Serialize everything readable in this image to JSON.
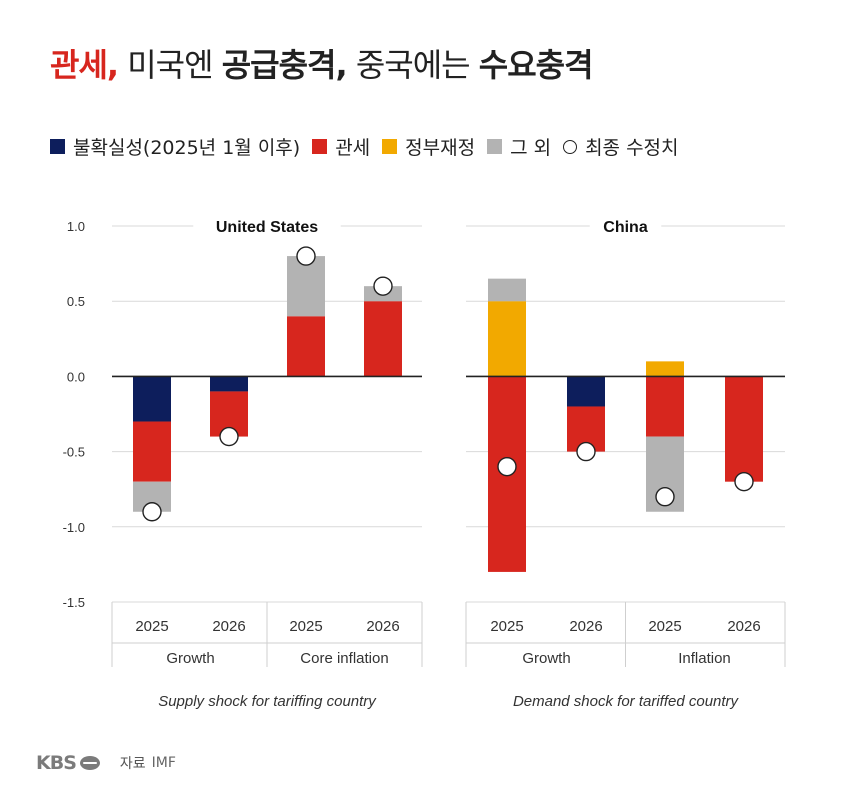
{
  "headline": {
    "part1": "관세,",
    "part2": " 미국엔 ",
    "part3": "공급충격,",
    "part4": " 중국에는 ",
    "part5": "수요충격"
  },
  "legend": [
    {
      "label": "불확실성(2025년 1월 이후)",
      "color": "#0d1e5c",
      "shape": "square"
    },
    {
      "label": "관세",
      "color": "#d7261e",
      "shape": "square"
    },
    {
      "label": "정부재정",
      "color": "#f2a900",
      "shape": "square"
    },
    {
      "label": "그 외",
      "color": "#b3b3b3",
      "shape": "square"
    },
    {
      "label": "최종 수정치",
      "color": "#ffffff",
      "shape": "circle"
    }
  ],
  "footer": {
    "brand": "KBS",
    "source_label": "자료",
    "source": "IMF"
  },
  "chart_data": [
    {
      "type": "bar",
      "stacked": true,
      "title": "United States",
      "subtitle": "Supply shock for tariffing country",
      "ylim": [
        -1.5,
        1.0
      ],
      "yticks": [
        "1.0",
        "0.5",
        "0.0",
        "-0.5",
        "-1.0",
        "-1.5"
      ],
      "categories": [
        "2025",
        "2026",
        "2025",
        "2026"
      ],
      "groups": [
        {
          "label": "Growth",
          "span": 2
        },
        {
          "label": "Core inflation",
          "span": 2
        }
      ],
      "series": [
        {
          "name": "불확실성(2025년 1월 이후)",
          "color": "#0d1e5c",
          "values": [
            -0.3,
            -0.1,
            0,
            0
          ]
        },
        {
          "name": "관세",
          "color": "#d7261e",
          "values": [
            -0.4,
            -0.3,
            0.4,
            0.5
          ]
        },
        {
          "name": "정부재정",
          "color": "#f2a900",
          "values": [
            0,
            0,
            0,
            0
          ]
        },
        {
          "name": "그 외",
          "color": "#b3b3b3",
          "values": [
            -0.2,
            0,
            0.4,
            0.1
          ]
        }
      ],
      "final_revision": [
        -0.9,
        -0.4,
        0.8,
        0.6
      ]
    },
    {
      "type": "bar",
      "stacked": true,
      "title": "China",
      "subtitle": "Demand shock for tariffed country",
      "ylim": [
        -1.5,
        1.0
      ],
      "yticks": [],
      "categories": [
        "2025",
        "2026",
        "2025",
        "2026"
      ],
      "groups": [
        {
          "label": "Growth",
          "span": 2
        },
        {
          "label": "Inflation",
          "span": 2
        }
      ],
      "series": [
        {
          "name": "불확실성(2025년 1월 이후)",
          "color": "#0d1e5c",
          "values": [
            0,
            -0.2,
            0,
            0
          ]
        },
        {
          "name": "관세",
          "color": "#d7261e",
          "values": [
            -1.3,
            -0.3,
            -0.4,
            -0.7
          ]
        },
        {
          "name": "정부재정",
          "color": "#f2a900",
          "values": [
            0.5,
            0,
            0.1,
            0
          ]
        },
        {
          "name": "그 외",
          "color": "#b3b3b3",
          "values": [
            0.15,
            0,
            -0.5,
            0
          ]
        }
      ],
      "final_revision": [
        -0.6,
        -0.5,
        -0.8,
        -0.7
      ]
    }
  ]
}
